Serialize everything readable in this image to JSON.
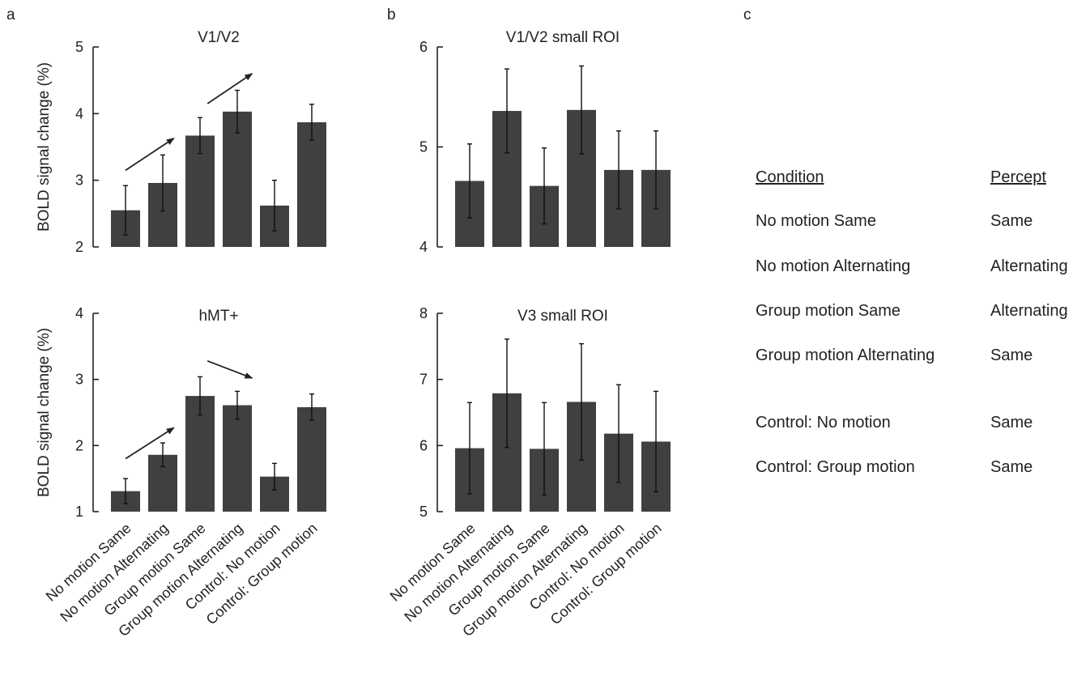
{
  "panel_letters": [
    "a",
    "b",
    "c"
  ],
  "colors": {
    "bar": "#404040",
    "axis": "#222222",
    "text": "#222222"
  },
  "chart_data": [
    {
      "type": "bar",
      "title": "V1/V2",
      "ylabel": "BOLD signal change (%)",
      "ylim": [
        2,
        5
      ],
      "yticks": [
        2,
        3,
        4,
        5
      ],
      "categories": [
        "No motion Same",
        "No motion Alternating",
        "Group motion Same",
        "Group motion Alternating",
        "Control: No motion",
        "Control: Group motion"
      ],
      "values": [
        2.55,
        2.96,
        3.67,
        4.03,
        2.62,
        3.87
      ],
      "errors": [
        0.37,
        0.42,
        0.27,
        0.32,
        0.38,
        0.27
      ],
      "annotations": [
        {
          "type": "arrow",
          "from": [
            0,
            3.15
          ],
          "to": [
            1.3,
            3.63
          ]
        },
        {
          "type": "arrow",
          "from": [
            2.2,
            4.15
          ],
          "to": [
            3.4,
            4.6
          ]
        }
      ],
      "grid": false,
      "show_category_labels": false
    },
    {
      "type": "bar",
      "title": "hMT+",
      "ylabel": "BOLD signal change (%)",
      "ylim": [
        1,
        4
      ],
      "yticks": [
        1,
        2,
        3,
        4
      ],
      "categories": [
        "No motion Same",
        "No motion Alternating",
        "Group motion Same",
        "Group motion Alternating",
        "Control: No motion",
        "Control: Group motion"
      ],
      "values": [
        1.31,
        1.86,
        2.75,
        2.61,
        1.53,
        2.58
      ],
      "errors": [
        0.19,
        0.18,
        0.29,
        0.21,
        0.2,
        0.2
      ],
      "annotations": [
        {
          "type": "arrow",
          "from": [
            0,
            1.8
          ],
          "to": [
            1.3,
            2.27
          ]
        },
        {
          "type": "arrow",
          "from": [
            2.2,
            3.28
          ],
          "to": [
            3.4,
            3.02
          ]
        }
      ],
      "grid": false,
      "show_category_labels": true
    },
    {
      "type": "bar",
      "title": "V1/V2 small ROI",
      "ylabel": "",
      "ylim": [
        4,
        6
      ],
      "yticks": [
        4,
        5,
        6
      ],
      "categories": [
        "No motion Same",
        "No motion Alternating",
        "Group motion Same",
        "Group motion Alternating",
        "Control: No motion",
        "Control: Group motion"
      ],
      "values": [
        4.66,
        5.36,
        4.61,
        5.37,
        4.77,
        4.77
      ],
      "errors": [
        0.37,
        0.42,
        0.38,
        0.44,
        0.39,
        0.39
      ],
      "annotations": [],
      "grid": false,
      "show_category_labels": false
    },
    {
      "type": "bar",
      "title": "V3 small ROI",
      "ylabel": "",
      "ylim": [
        5,
        8
      ],
      "yticks": [
        5,
        6,
        7,
        8
      ],
      "categories": [
        "No motion Same",
        "No motion Alternating",
        "Group motion Same",
        "Group motion Alternating",
        "Control: No motion",
        "Control: Group motion"
      ],
      "values": [
        5.96,
        6.79,
        5.95,
        6.66,
        6.18,
        6.06
      ],
      "errors": [
        0.69,
        0.82,
        0.7,
        0.88,
        0.74,
        0.76
      ],
      "annotations": [],
      "grid": false,
      "show_category_labels": true
    }
  ],
  "legend_table": {
    "headers": {
      "condition": "Condition",
      "percept": "Percept"
    },
    "rows": [
      {
        "condition": "No motion Same",
        "percept": "Same"
      },
      {
        "condition": "No motion Alternating",
        "percept": "Alternating"
      },
      {
        "condition": "Group motion Same",
        "percept": "Alternating"
      },
      {
        "condition": "Group motion Alternating",
        "percept": "Same"
      },
      {
        "condition": "Control: No motion",
        "percept": "Same"
      },
      {
        "condition": "Control: Group motion",
        "percept": "Same"
      }
    ]
  }
}
